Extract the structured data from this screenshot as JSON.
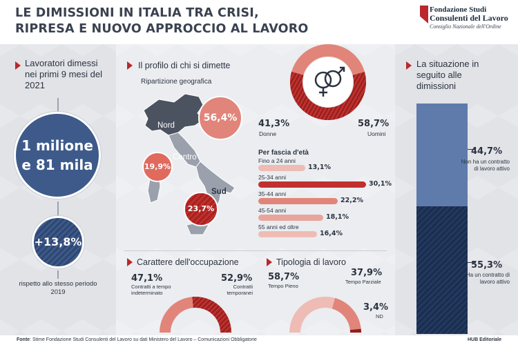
{
  "header": {
    "title_line1": "LE DIMISSIONI IN ITALIA TRA CRISI,",
    "title_line2": "RIPRESA E NUOVO APPROCCIO AL LAVORO",
    "logo_line1": "Fondazione Studi",
    "logo_line2": "Consulenti del Lavoro",
    "logo_line3": "Consiglio Nazionale dell'Ordine"
  },
  "left": {
    "heading": "Lavoratori dimessi nei primi 9 mesi del 2021",
    "big_line1": "1 milione",
    "big_line2": "e 81 mila",
    "change": "+13,8%",
    "note": "rispetto allo stesso periodo 2019"
  },
  "profile": {
    "heading": "Il profilo di chi si dimette",
    "geo_heading": "Ripartizione geografica",
    "regions": [
      {
        "name": "Nord",
        "value": "56,4%"
      },
      {
        "name": "Centro",
        "value": "19,9%"
      },
      {
        "name": "Sud",
        "value": "23,7%"
      }
    ],
    "gender": {
      "women_value": "41,3%",
      "women_label": "Donne",
      "men_value": "58,7%",
      "men_label": "Uomini",
      "women_fraction": 0.413
    },
    "age_heading": "Per fascia d'età",
    "ages": [
      {
        "label": "Fino a 24 anni",
        "value": "13,1%",
        "num": 13.1
      },
      {
        "label": "25-34 anni",
        "value": "30,1%",
        "num": 30.1
      },
      {
        "label": "35-44 anni",
        "value": "22,2%",
        "num": 22.2
      },
      {
        "label": "45-54 anni",
        "value": "18,1%",
        "num": 18.1
      },
      {
        "label": "55 anni ed oltre",
        "value": "16,4%",
        "num": 16.4
      }
    ]
  },
  "occupation": {
    "heading": "Carattere dell'occupazione",
    "a_value": "47,1%",
    "a_label": "Contratti a tempo indeterminato",
    "b_value": "52,9%",
    "b_label": "Contratti temporanei",
    "a_fraction": 0.471
  },
  "worktype": {
    "heading": "Tipologia di lavoro",
    "full_value": "58,7%",
    "full_label": "Tempo Pieno",
    "part_value": "37,9%",
    "part_label": "Tempo Parziale",
    "nd_value": "3,4%",
    "nd_label": "ND",
    "full_fraction": 0.587,
    "part_fraction": 0.379,
    "nd_fraction": 0.034
  },
  "situation": {
    "heading": "La situazione in seguito alle dimissioni",
    "top_value": "44,7%",
    "top_label": "Non ha un contratto di lavoro attivo",
    "bottom_value": "55,3%",
    "bottom_label": "Ha un contratto di lavoro attivo",
    "top_fraction": 0.447
  },
  "footer": {
    "source_bold": "Fonte",
    "source": ": Stime Fondazione Studi Consulenti del Lavoro su dati Ministero del Lavoro – Comunicazioni Obbligatorie",
    "publisher": "HUB Editoriale"
  },
  "colors": {
    "navy": "#3d5a8a",
    "navy_dark": "#1e3358",
    "red": "#c0302e",
    "salmon": "#e1857a",
    "pink": "#eebcb4"
  }
}
